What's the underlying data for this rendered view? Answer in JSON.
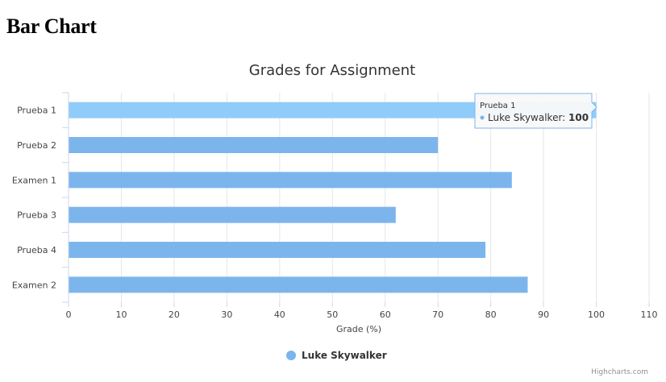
{
  "page": {
    "heading": "Bar Chart"
  },
  "chart_data": {
    "type": "bar",
    "orientation": "horizontal",
    "title": "Grades for Assignment",
    "categories": [
      "Prueba 1",
      "Prueba 2",
      "Examen 1",
      "Prueba 3",
      "Prueba 4",
      "Examen 2"
    ],
    "series": [
      {
        "name": "Luke Skywalker",
        "values": [
          100,
          70,
          84,
          62,
          79,
          87
        ],
        "color": "#7cb5ec"
      }
    ],
    "xlabel": "Grade (%)",
    "ylabel": "",
    "xlim": [
      0,
      110
    ],
    "ticks": [
      "0",
      "10",
      "20",
      "30",
      "40",
      "50",
      "60",
      "70",
      "80",
      "90",
      "100",
      "110"
    ],
    "grid": true,
    "legend_position": "bottom-center",
    "highlight_color": "#90ccfa",
    "tooltip": {
      "category": "Prueba 1",
      "series": "Luke Skywalker",
      "value": "100"
    },
    "credits": "Highcharts.com"
  }
}
